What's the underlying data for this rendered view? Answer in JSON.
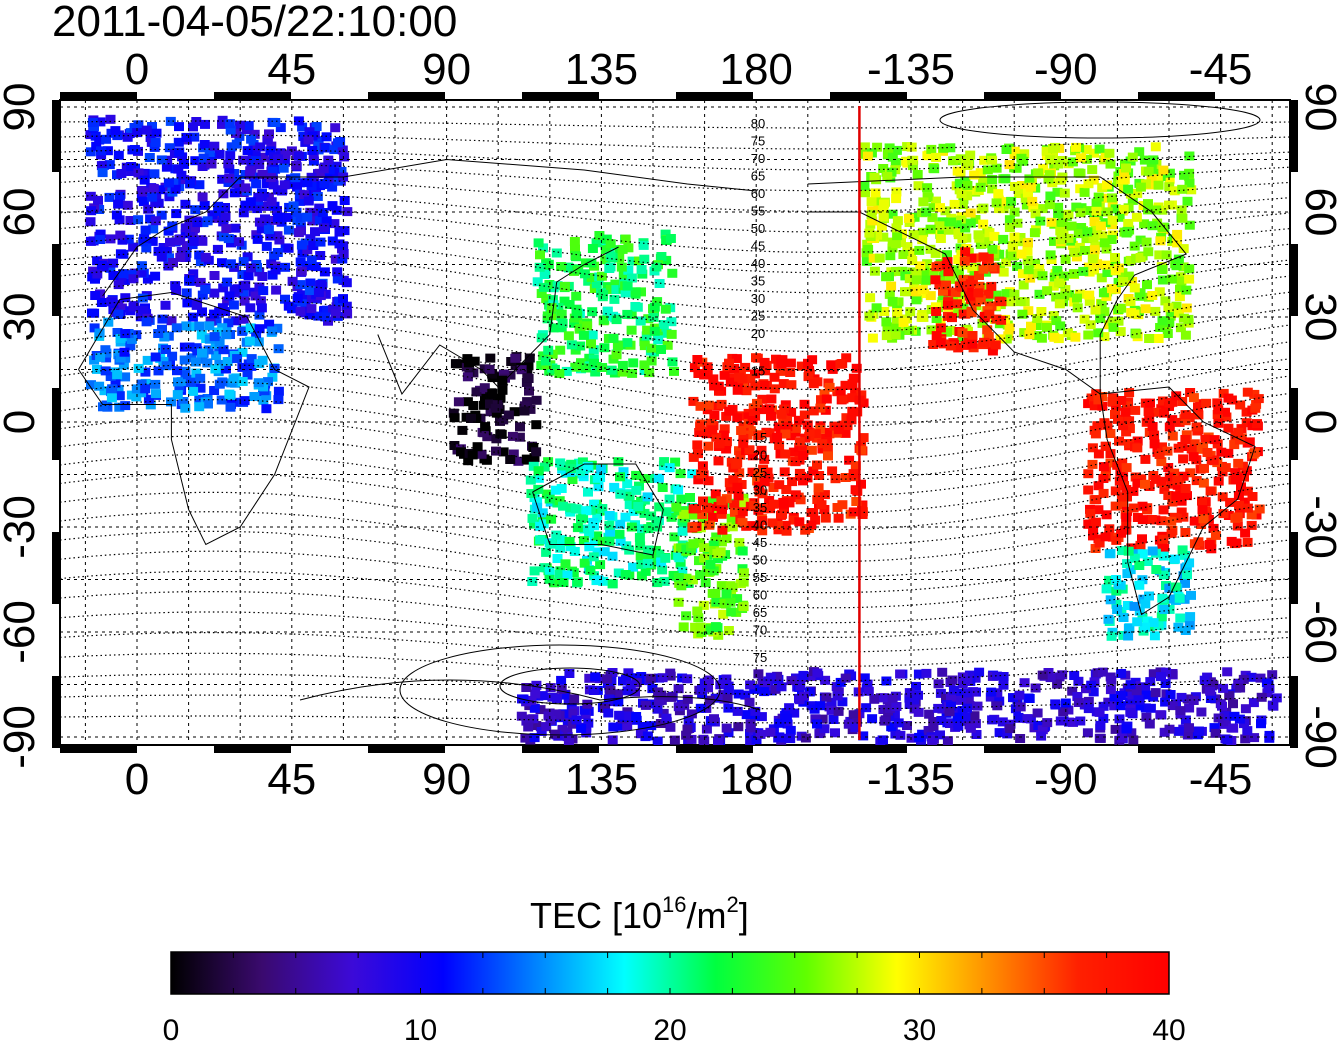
{
  "title": "2011-04-05/22:10:00",
  "map": {
    "x_tick_labels": [
      "0",
      "45",
      "90",
      "135",
      "180",
      "-135",
      "-90",
      "-45"
    ],
    "y_tick_labels": [
      "90",
      "60",
      "30",
      "0",
      "-30",
      "-60",
      "-90"
    ],
    "magnetic_latitude_labels_north": [
      "80",
      "75",
      "70",
      "65",
      "60",
      "55",
      "50",
      "45",
      "40",
      "35",
      "30",
      "25",
      "20",
      "15"
    ],
    "magnetic_latitude_labels_south": [
      "15",
      "20",
      "25",
      "30",
      "35",
      "40",
      "45",
      "50",
      "55",
      "60",
      "65",
      "70",
      "75"
    ],
    "terminator_longitude": -150,
    "terminator_color": "#e00000",
    "regions": [
      {
        "label": "europe-high-lat",
        "lon": [
          -15,
          60
        ],
        "lat": [
          30,
          88
        ],
        "tec": 10
      },
      {
        "label": "africa-north",
        "lon": [
          -15,
          40
        ],
        "lat": [
          5,
          30
        ],
        "tec": 14
      },
      {
        "label": "east-asia",
        "lon": [
          115,
          155
        ],
        "lat": [
          15,
          55
        ],
        "tec": 22
      },
      {
        "label": "indonesia-low",
        "lon": [
          90,
          115
        ],
        "lat": [
          -10,
          20
        ],
        "tec": 1
      },
      {
        "label": "australia",
        "lon": [
          113,
          160
        ],
        "lat": [
          -45,
          -10
        ],
        "tec": 20
      },
      {
        "label": "pacific-south",
        "lon": [
          155,
          175
        ],
        "lat": [
          -60,
          -20
        ],
        "tec": 25
      },
      {
        "label": "pacific-west-red",
        "lon": [
          160,
          210
        ],
        "lat": [
          -30,
          20
        ],
        "tec": 38
      },
      {
        "label": "north-america",
        "lon": [
          -150,
          -55
        ],
        "lat": [
          25,
          80
        ],
        "tec": 27
      },
      {
        "label": "us-west-coast",
        "lon": [
          -130,
          -110
        ],
        "lat": [
          20,
          50
        ],
        "tec": 38
      },
      {
        "label": "south-america",
        "lon": [
          -85,
          -35
        ],
        "lat": [
          -35,
          10
        ],
        "tec": 38
      },
      {
        "label": "south-america-south",
        "lon": [
          -80,
          -55
        ],
        "lat": [
          -60,
          -35
        ],
        "tec": 18
      },
      {
        "label": "antarctica",
        "lon": [
          110,
          330
        ],
        "lat": [
          -90,
          -70
        ],
        "tec": 8
      }
    ]
  },
  "colorbar": {
    "label": "TEC  [10",
    "label_sup": "16",
    "label_unit": "/m",
    "label_unit_sup": "2",
    "label_close": "]",
    "min": 0,
    "max": 40,
    "tick_labels": [
      "0",
      "10",
      "20",
      "30",
      "40"
    ],
    "colors": [
      "#000000",
      "#3a0a6e",
      "#3c0ad8",
      "#0000ff",
      "#0080ff",
      "#00ffff",
      "#00ff40",
      "#60ff00",
      "#ffff00",
      "#ff9000",
      "#ff2000",
      "#ff0000"
    ]
  }
}
